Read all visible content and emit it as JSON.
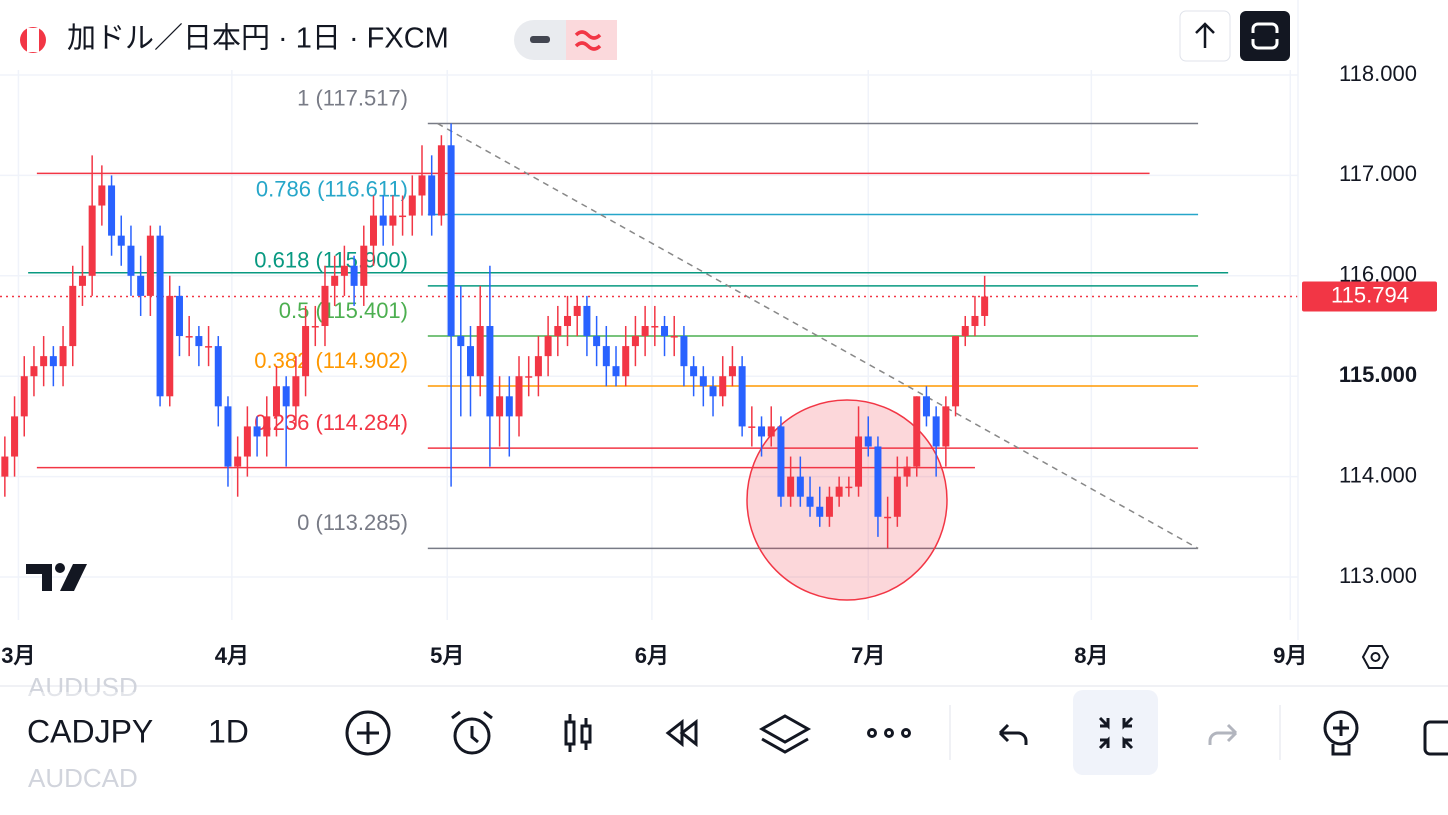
{
  "header": {
    "title": "加ドル／日本円 · 1日 · FXCM"
  },
  "chart_data": {
    "type": "candlestick",
    "up_color": "#f23645",
    "down_color": "#2962ff",
    "candles": [
      [
        114.0,
        114.4,
        113.8,
        114.2
      ],
      [
        114.2,
        114.8,
        114.0,
        114.6
      ],
      [
        114.6,
        115.2,
        114.4,
        115.0
      ],
      [
        115.0,
        115.3,
        114.8,
        115.1
      ],
      [
        115.1,
        115.4,
        114.9,
        115.2
      ],
      [
        115.2,
        115.3,
        114.9,
        115.1
      ],
      [
        115.1,
        115.5,
        114.9,
        115.3
      ],
      [
        115.3,
        116.1,
        115.1,
        115.9
      ],
      [
        115.9,
        116.3,
        115.7,
        116.0
      ],
      [
        116.0,
        117.2,
        115.8,
        116.7
      ],
      [
        116.7,
        117.1,
        116.5,
        116.9
      ],
      [
        116.9,
        117.0,
        116.2,
        116.4
      ],
      [
        116.4,
        116.6,
        116.1,
        116.3
      ],
      [
        116.3,
        116.5,
        115.8,
        116.0
      ],
      [
        116.0,
        116.2,
        115.6,
        115.8
      ],
      [
        115.8,
        116.5,
        115.6,
        116.4
      ],
      [
        116.4,
        116.5,
        114.7,
        114.8
      ],
      [
        114.8,
        116.0,
        114.7,
        115.8
      ],
      [
        115.8,
        115.9,
        115.2,
        115.4
      ],
      [
        115.4,
        115.6,
        115.2,
        115.4
      ],
      [
        115.4,
        115.5,
        115.1,
        115.3
      ],
      [
        115.3,
        115.5,
        115.1,
        115.3
      ],
      [
        115.3,
        115.4,
        114.5,
        114.7
      ],
      [
        114.7,
        114.8,
        113.9,
        114.1
      ],
      [
        114.1,
        114.4,
        113.8,
        114.2
      ],
      [
        114.2,
        114.7,
        114.0,
        114.5
      ],
      [
        114.5,
        114.6,
        114.2,
        114.4
      ],
      [
        114.4,
        114.8,
        114.2,
        114.6
      ],
      [
        114.6,
        115.1,
        114.4,
        114.9
      ],
      [
        114.9,
        115.0,
        114.1,
        114.7
      ],
      [
        114.7,
        115.2,
        114.5,
        115.0
      ],
      [
        115.0,
        115.7,
        114.8,
        115.5
      ],
      [
        115.5,
        115.7,
        115.3,
        115.5
      ],
      [
        115.5,
        116.1,
        115.3,
        115.9
      ],
      [
        115.9,
        116.2,
        115.7,
        116.0
      ],
      [
        116.0,
        116.3,
        115.8,
        116.1
      ],
      [
        116.1,
        116.2,
        115.7,
        115.9
      ],
      [
        115.9,
        116.5,
        115.7,
        116.3
      ],
      [
        116.3,
        116.8,
        116.1,
        116.6
      ],
      [
        116.6,
        116.8,
        116.3,
        116.5
      ],
      [
        116.5,
        116.8,
        116.3,
        116.6
      ],
      [
        116.6,
        116.8,
        116.4,
        116.6
      ],
      [
        116.6,
        117.0,
        116.4,
        116.8
      ],
      [
        116.8,
        117.3,
        116.6,
        117.0
      ],
      [
        117.0,
        117.2,
        116.4,
        116.6
      ],
      [
        116.6,
        117.4,
        116.5,
        117.3
      ],
      [
        117.3,
        117.517,
        113.9,
        115.4
      ],
      [
        115.4,
        115.9,
        114.6,
        115.3
      ],
      [
        115.3,
        115.5,
        114.6,
        115.0
      ],
      [
        115.0,
        115.9,
        114.8,
        115.5
      ],
      [
        115.5,
        116.1,
        114.1,
        114.6
      ],
      [
        114.6,
        115.0,
        114.3,
        114.8
      ],
      [
        114.8,
        115.0,
        114.2,
        114.6
      ],
      [
        114.6,
        115.2,
        114.4,
        115.0
      ],
      [
        115.0,
        115.2,
        114.8,
        115.0
      ],
      [
        115.0,
        115.4,
        114.8,
        115.2
      ],
      [
        115.2,
        115.6,
        115.0,
        115.4
      ],
      [
        115.4,
        115.7,
        115.2,
        115.5
      ],
      [
        115.5,
        115.8,
        115.3,
        115.6
      ],
      [
        115.6,
        115.8,
        115.4,
        115.7
      ],
      [
        115.7,
        115.8,
        115.2,
        115.4
      ],
      [
        115.4,
        115.6,
        115.1,
        115.3
      ],
      [
        115.3,
        115.5,
        114.9,
        115.1
      ],
      [
        115.1,
        115.3,
        114.9,
        115.0
      ],
      [
        115.0,
        115.5,
        114.9,
        115.3
      ],
      [
        115.3,
        115.6,
        115.1,
        115.4
      ],
      [
        115.4,
        115.7,
        115.2,
        115.5
      ],
      [
        115.5,
        115.7,
        115.3,
        115.5
      ],
      [
        115.5,
        115.6,
        115.2,
        115.4
      ],
      [
        115.4,
        115.6,
        115.2,
        115.4
      ],
      [
        115.4,
        115.5,
        114.9,
        115.1
      ],
      [
        115.1,
        115.2,
        114.8,
        115.0
      ],
      [
        115.0,
        115.1,
        114.7,
        114.9
      ],
      [
        114.9,
        115.0,
        114.6,
        114.8
      ],
      [
        114.8,
        115.2,
        114.7,
        115.0
      ],
      [
        115.0,
        115.3,
        114.9,
        115.1
      ],
      [
        115.1,
        115.2,
        114.4,
        114.5
      ],
      [
        114.5,
        114.7,
        114.3,
        114.5
      ],
      [
        114.5,
        114.6,
        114.2,
        114.4
      ],
      [
        114.4,
        114.7,
        114.3,
        114.5
      ],
      [
        114.5,
        114.6,
        113.7,
        113.8
      ],
      [
        113.8,
        114.2,
        113.7,
        114.0
      ],
      [
        114.0,
        114.2,
        113.7,
        113.8
      ],
      [
        113.8,
        114.0,
        113.6,
        113.7
      ],
      [
        113.7,
        113.9,
        113.5,
        113.6
      ],
      [
        113.6,
        113.9,
        113.5,
        113.8
      ],
      [
        113.8,
        114.0,
        113.7,
        113.9
      ],
      [
        113.9,
        114.0,
        113.8,
        113.9
      ],
      [
        113.9,
        114.7,
        113.8,
        114.4
      ],
      [
        114.4,
        114.6,
        114.2,
        114.3
      ],
      [
        114.3,
        114.4,
        113.4,
        113.6
      ],
      [
        113.6,
        113.8,
        113.285,
        113.6
      ],
      [
        113.6,
        114.2,
        113.5,
        114.0
      ],
      [
        114.0,
        114.2,
        113.9,
        114.1
      ],
      [
        114.1,
        114.8,
        114.0,
        114.8
      ],
      [
        114.8,
        114.9,
        114.5,
        114.6
      ],
      [
        114.6,
        114.7,
        114.0,
        114.3
      ],
      [
        114.3,
        114.8,
        114.1,
        114.7
      ],
      [
        114.7,
        115.4,
        114.6,
        115.4
      ],
      [
        115.4,
        115.6,
        115.3,
        115.5
      ],
      [
        115.5,
        115.8,
        115.4,
        115.6
      ],
      [
        115.6,
        116.0,
        115.5,
        115.794
      ]
    ],
    "xlim": [
      -0.5,
      133.3
    ],
    "xticks": [
      {
        "value": 1.4,
        "label": "3月"
      },
      {
        "value": 23.4,
        "label": "4月"
      },
      {
        "value": 45.6,
        "label": "5月"
      },
      {
        "value": 66.7,
        "label": "6月"
      },
      {
        "value": 89,
        "label": "7月"
      },
      {
        "value": 112,
        "label": "8月"
      },
      {
        "value": 132.5,
        "label": "9月"
      }
    ],
    "ylim": [
      112.572,
      118.747
    ],
    "yticks": [
      {
        "value": 118,
        "label": "118.000"
      },
      {
        "value": 117,
        "label": "117.000"
      },
      {
        "value": 116,
        "label": "116.000"
      },
      {
        "value": 115,
        "label": "115.000"
      },
      {
        "value": 114,
        "label": "114.000"
      },
      {
        "value": 113,
        "label": "113.000"
      }
    ],
    "grid": true,
    "last_price": 115.794,
    "fib_x": [
      43.6,
      123
    ],
    "fib_levels": [
      {
        "label": "1 (117.517)",
        "value": 117.517,
        "color": "#787b86"
      },
      {
        "label": "0.786 (116.611)",
        "value": 116.611,
        "color": "#26a6c9"
      },
      {
        "label": "0.618 (115.900)",
        "value": 115.9,
        "color": "#089981"
      },
      {
        "label": "0.5 (115.401)",
        "value": 115.401,
        "color": "#4caf50"
      },
      {
        "label": "0.382 (114.902)",
        "value": 114.902,
        "color": "#ff9800"
      },
      {
        "label": "0.236 (114.284)",
        "value": 114.284,
        "color": "#f23645"
      },
      {
        "label": "0 (113.285)",
        "value": 113.285,
        "color": "#787b86"
      }
    ],
    "lines": [
      {
        "value": 117.02,
        "x": [
          3.3,
          118
        ],
        "color": "#f23645"
      },
      {
        "value": 114.09,
        "x": [
          3.3,
          100
        ],
        "color": "#f23645"
      },
      {
        "value": 116.03,
        "x": [
          2.4,
          126.1
        ],
        "color": "#089981"
      }
    ],
    "trendline": {
      "x": [
        44.6,
        123
      ],
      "y": [
        117.517,
        113.285
      ]
    }
  },
  "toolbar": {
    "symbol": "CADJPY",
    "interval": "1D",
    "ghost": [
      "AUDUSD",
      "AUDCAD"
    ]
  }
}
